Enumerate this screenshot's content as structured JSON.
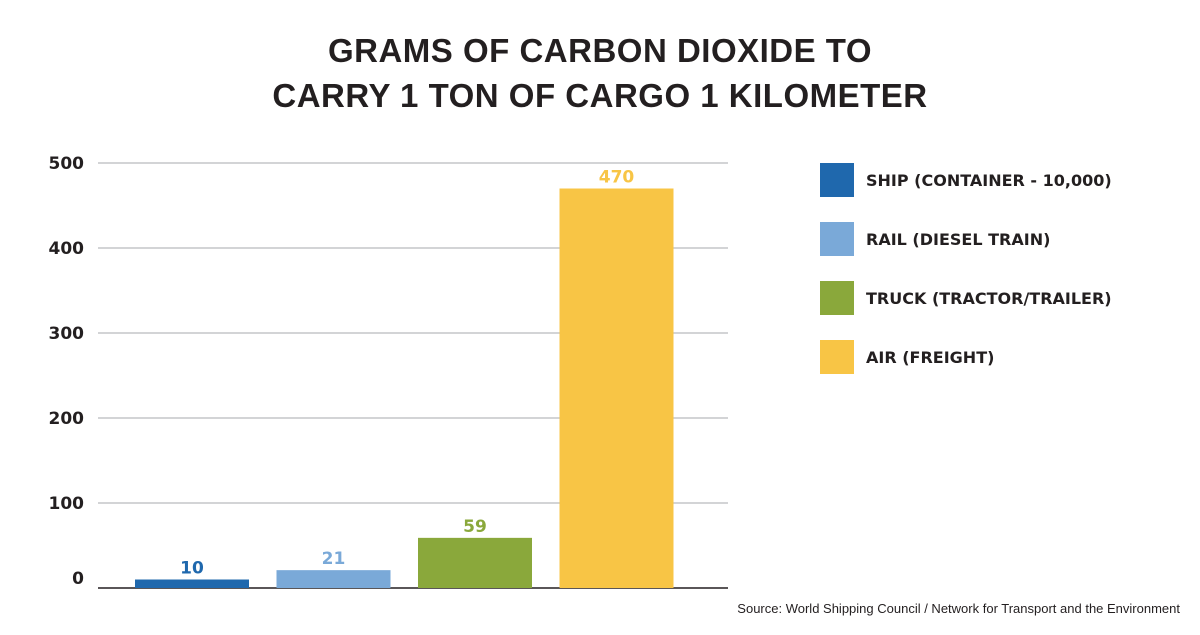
{
  "chart_data": {
    "type": "bar",
    "title_line1": "GRAMS OF CARBON DIOXIDE TO",
    "title_line2": "CARRY 1 TON OF CARGO 1 KILOMETER",
    "categories": [
      "SHIP (CONTAINER - 10,000)",
      "RAIL (DIESEL TRAIN)",
      "TRUCK (TRACTOR/TRAILER)",
      "AIR (FREIGHT)"
    ],
    "values": [
      10,
      21,
      59,
      470
    ],
    "value_labels": [
      "10",
      "21",
      "59",
      "470"
    ],
    "colors": [
      "#1f68ad",
      "#7aa9d8",
      "#8aa83b",
      "#f8c545"
    ],
    "ylim": [
      0,
      500
    ],
    "yticks": [
      0,
      100,
      200,
      300,
      400,
      500
    ],
    "ytick_labels": [
      "0",
      "100",
      "200",
      "300",
      "400",
      "500"
    ],
    "grid": true,
    "legend_position": "right",
    "source": "Source: World Shipping Council / Network for Transport and the Environment"
  }
}
